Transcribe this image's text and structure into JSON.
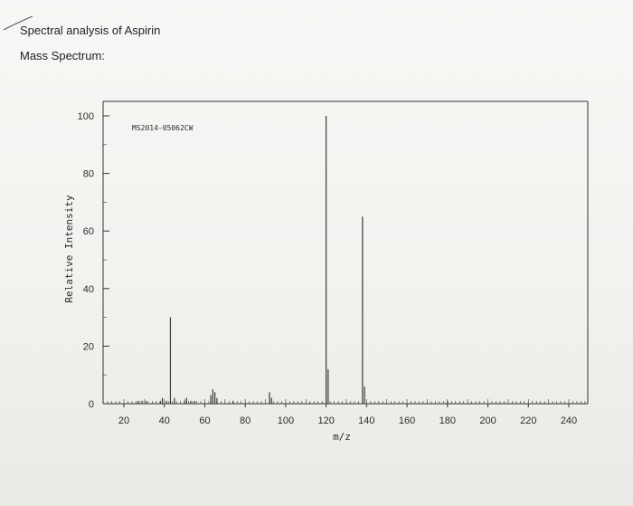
{
  "header": {
    "title": "Spectral analysis of Aspirin",
    "subtitle": "Mass Spectrum:"
  },
  "chart_data": {
    "type": "bar",
    "title": "",
    "annotation": "MS2014-05062CW",
    "xlabel": "m/z",
    "ylabel": "Relative Intensity",
    "xlim": [
      10,
      250
    ],
    "ylim": [
      0,
      100
    ],
    "x_ticks": [
      20,
      40,
      60,
      80,
      100,
      120,
      140,
      160,
      180,
      200,
      220,
      240
    ],
    "y_ticks": [
      0,
      20,
      40,
      60,
      80,
      100
    ],
    "grid": false,
    "legend": "none",
    "peaks": [
      {
        "x": 27,
        "y": 1
      },
      {
        "x": 29,
        "y": 1
      },
      {
        "x": 31,
        "y": 1
      },
      {
        "x": 38,
        "y": 1
      },
      {
        "x": 39,
        "y": 2
      },
      {
        "x": 41,
        "y": 1
      },
      {
        "x": 43,
        "y": 30
      },
      {
        "x": 45,
        "y": 2
      },
      {
        "x": 50,
        "y": 1
      },
      {
        "x": 51,
        "y": 2
      },
      {
        "x": 53,
        "y": 1
      },
      {
        "x": 55,
        "y": 1
      },
      {
        "x": 63,
        "y": 3
      },
      {
        "x": 64,
        "y": 5
      },
      {
        "x": 65,
        "y": 4
      },
      {
        "x": 66,
        "y": 2
      },
      {
        "x": 74,
        "y": 1
      },
      {
        "x": 92,
        "y": 4
      },
      {
        "x": 93,
        "y": 2
      },
      {
        "x": 120,
        "y": 100
      },
      {
        "x": 121,
        "y": 12
      },
      {
        "x": 138,
        "y": 65
      },
      {
        "x": 139,
        "y": 6
      },
      {
        "x": 180,
        "y": 1
      }
    ],
    "colors": {
      "axis": "#333333",
      "peak": "#3a3a3a",
      "text": "#2a2a2a"
    }
  }
}
